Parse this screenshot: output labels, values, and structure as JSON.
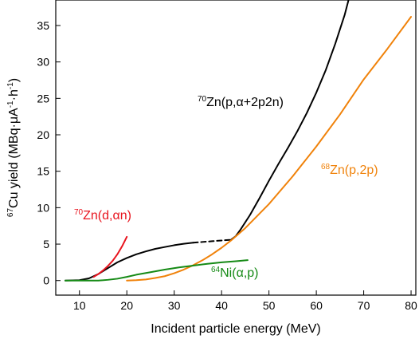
{
  "chart_data": {
    "type": "line",
    "xlabel": "Incident particle energy (MeV)",
    "ylabel": {
      "sup": "67",
      "text": "Cu yield (MBq·μA",
      "sup2": "-1",
      "mid": "·h",
      "sup3": "-1",
      "end": ")"
    },
    "xlim": [
      5,
      81
    ],
    "ylim": [
      -2,
      38.5
    ],
    "x_ticks": [
      10,
      20,
      30,
      40,
      50,
      60,
      70,
      80
    ],
    "y_ticks": [
      0,
      5,
      10,
      15,
      20,
      25,
      30,
      35
    ],
    "grid": false,
    "series": [
      {
        "name": "70Zn(p,α+2p2n)",
        "label": {
          "sup": "70",
          "text": "Zn(p,α+2p2n)"
        },
        "color": "#000000",
        "dashed_between": [
          34,
          42
        ],
        "points": [
          [
            7,
            0
          ],
          [
            10,
            0.05
          ],
          [
            12,
            0.3
          ],
          [
            14,
            0.9
          ],
          [
            16,
            1.7
          ],
          [
            18,
            2.5
          ],
          [
            20,
            3.1
          ],
          [
            22,
            3.6
          ],
          [
            24,
            4.0
          ],
          [
            26,
            4.35
          ],
          [
            28,
            4.6
          ],
          [
            30,
            4.85
          ],
          [
            32,
            5.05
          ],
          [
            34,
            5.2
          ],
          [
            36,
            5.3
          ],
          [
            38,
            5.4
          ],
          [
            40,
            5.5
          ],
          [
            42,
            5.6
          ],
          [
            43,
            6.1
          ],
          [
            44,
            7.0
          ],
          [
            46,
            9.0
          ],
          [
            48,
            11.3
          ],
          [
            50,
            13.7
          ],
          [
            52,
            16.0
          ],
          [
            54,
            18.2
          ],
          [
            56,
            20.5
          ],
          [
            58,
            23.0
          ],
          [
            60,
            25.8
          ],
          [
            62,
            28.9
          ],
          [
            64,
            32.5
          ],
          [
            66,
            36.5
          ],
          [
            66.8,
            38.5
          ]
        ]
      },
      {
        "name": "68Zn(p,2p)",
        "label": {
          "sup": "68",
          "text": "Zn(p,2p)"
        },
        "color": "#f0820a",
        "points": [
          [
            20,
            0
          ],
          [
            22,
            0.05
          ],
          [
            24,
            0.15
          ],
          [
            26,
            0.35
          ],
          [
            28,
            0.6
          ],
          [
            30,
            1.0
          ],
          [
            32,
            1.5
          ],
          [
            34,
            2.1
          ],
          [
            36,
            2.8
          ],
          [
            38,
            3.6
          ],
          [
            40,
            4.5
          ],
          [
            42,
            5.5
          ],
          [
            45,
            7.2
          ],
          [
            50,
            10.5
          ],
          [
            55,
            14.3
          ],
          [
            60,
            18.4
          ],
          [
            65,
            22.8
          ],
          [
            70,
            27.6
          ],
          [
            75,
            31.8
          ],
          [
            80,
            36.2
          ]
        ]
      },
      {
        "name": "70Zn(d,αn)",
        "label": {
          "sup": "70",
          "text": "Zn(d,αn)"
        },
        "color": "#e8141e",
        "points": [
          [
            13,
            0.5
          ],
          [
            14,
            0.9
          ],
          [
            15,
            1.4
          ],
          [
            16,
            2.0
          ],
          [
            17,
            2.7
          ],
          [
            18,
            3.6
          ],
          [
            19,
            4.7
          ],
          [
            20,
            6.0
          ]
        ]
      },
      {
        "name": "64Ni(α,p)",
        "label": {
          "sup": "64",
          "text": "Ni(α,p)"
        },
        "color": "#158a15",
        "points": [
          [
            7,
            0
          ],
          [
            10,
            0
          ],
          [
            12,
            0
          ],
          [
            14,
            0
          ],
          [
            16,
            0.1
          ],
          [
            18,
            0.25
          ],
          [
            20,
            0.5
          ],
          [
            22,
            0.8
          ],
          [
            25,
            1.15
          ],
          [
            28,
            1.5
          ],
          [
            31,
            1.8
          ],
          [
            34,
            2.05
          ],
          [
            37,
            2.3
          ],
          [
            40,
            2.5
          ],
          [
            43,
            2.65
          ],
          [
            45.5,
            2.8
          ]
        ]
      }
    ]
  }
}
